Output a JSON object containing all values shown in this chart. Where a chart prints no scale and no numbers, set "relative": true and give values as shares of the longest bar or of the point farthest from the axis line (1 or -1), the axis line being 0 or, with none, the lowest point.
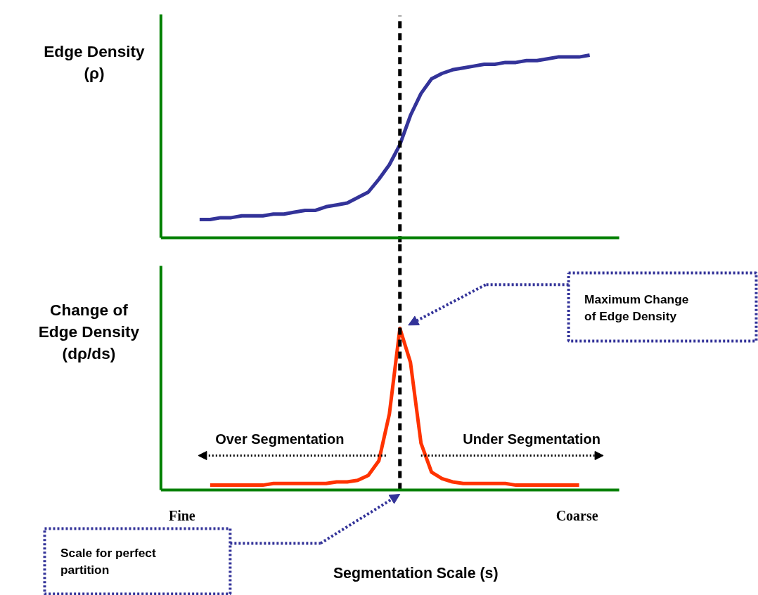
{
  "chart_data": [
    {
      "type": "line",
      "relative": true,
      "ylabel": "Edge Density (ρ)",
      "categories": [
        null,
        null,
        null,
        null,
        null,
        null,
        null,
        null,
        null,
        null,
        null,
        null,
        null,
        null,
        null,
        null,
        null,
        null,
        null,
        null,
        null,
        null,
        null,
        null,
        null,
        null,
        null,
        null,
        null,
        null,
        null,
        null,
        null,
        null,
        null,
        null,
        null,
        null
      ],
      "series": [
        {
          "color": "#333399",
          "values": [
            0.1,
            0.1,
            0.11,
            0.11,
            0.12,
            0.12,
            0.12,
            0.13,
            0.13,
            0.14,
            0.15,
            0.15,
            0.17,
            0.18,
            0.19,
            0.22,
            0.25,
            0.32,
            0.4,
            0.51,
            0.67,
            0.79,
            0.87,
            0.9,
            0.92,
            0.93,
            0.94,
            0.95,
            0.95,
            0.96,
            0.96,
            0.97,
            0.97,
            0.98,
            0.99,
            0.99,
            0.99,
            1.0
          ]
        }
      ],
      "title": null
    },
    {
      "type": "line",
      "relative": true,
      "ylabel": "Change of Edge Density (dρ/ds)",
      "xlabel": "Segmentation Scale (s)",
      "categories": [
        null,
        null,
        null,
        null,
        null,
        null,
        null,
        null,
        null,
        null,
        null,
        null,
        null,
        null,
        null,
        null,
        null,
        null,
        null,
        null,
        null,
        null,
        null,
        null,
        null,
        null,
        null,
        null,
        null,
        null,
        null,
        null,
        null,
        null,
        null,
        null,
        null,
        null
      ],
      "series": [
        {
          "color": "#ff3300",
          "values": [
            null,
            0.03,
            0.03,
            0.03,
            0.03,
            0.03,
            0.03,
            0.04,
            0.04,
            0.04,
            0.04,
            0.04,
            0.04,
            0.05,
            0.05,
            0.06,
            0.09,
            0.18,
            0.47,
            1.0,
            0.79,
            0.29,
            0.11,
            0.07,
            0.05,
            0.04,
            0.04,
            0.04,
            0.04,
            0.04,
            0.03,
            0.03,
            0.03,
            0.03,
            0.03,
            0.03,
            0.03,
            null
          ]
        }
      ],
      "annotations": [
        "Fine",
        "Coarse",
        "Over Segmentation",
        "Under Segmentation",
        "Maximum Change of Edge Density",
        "Scale for perfect partition"
      ],
      "title": null
    }
  ]
}
